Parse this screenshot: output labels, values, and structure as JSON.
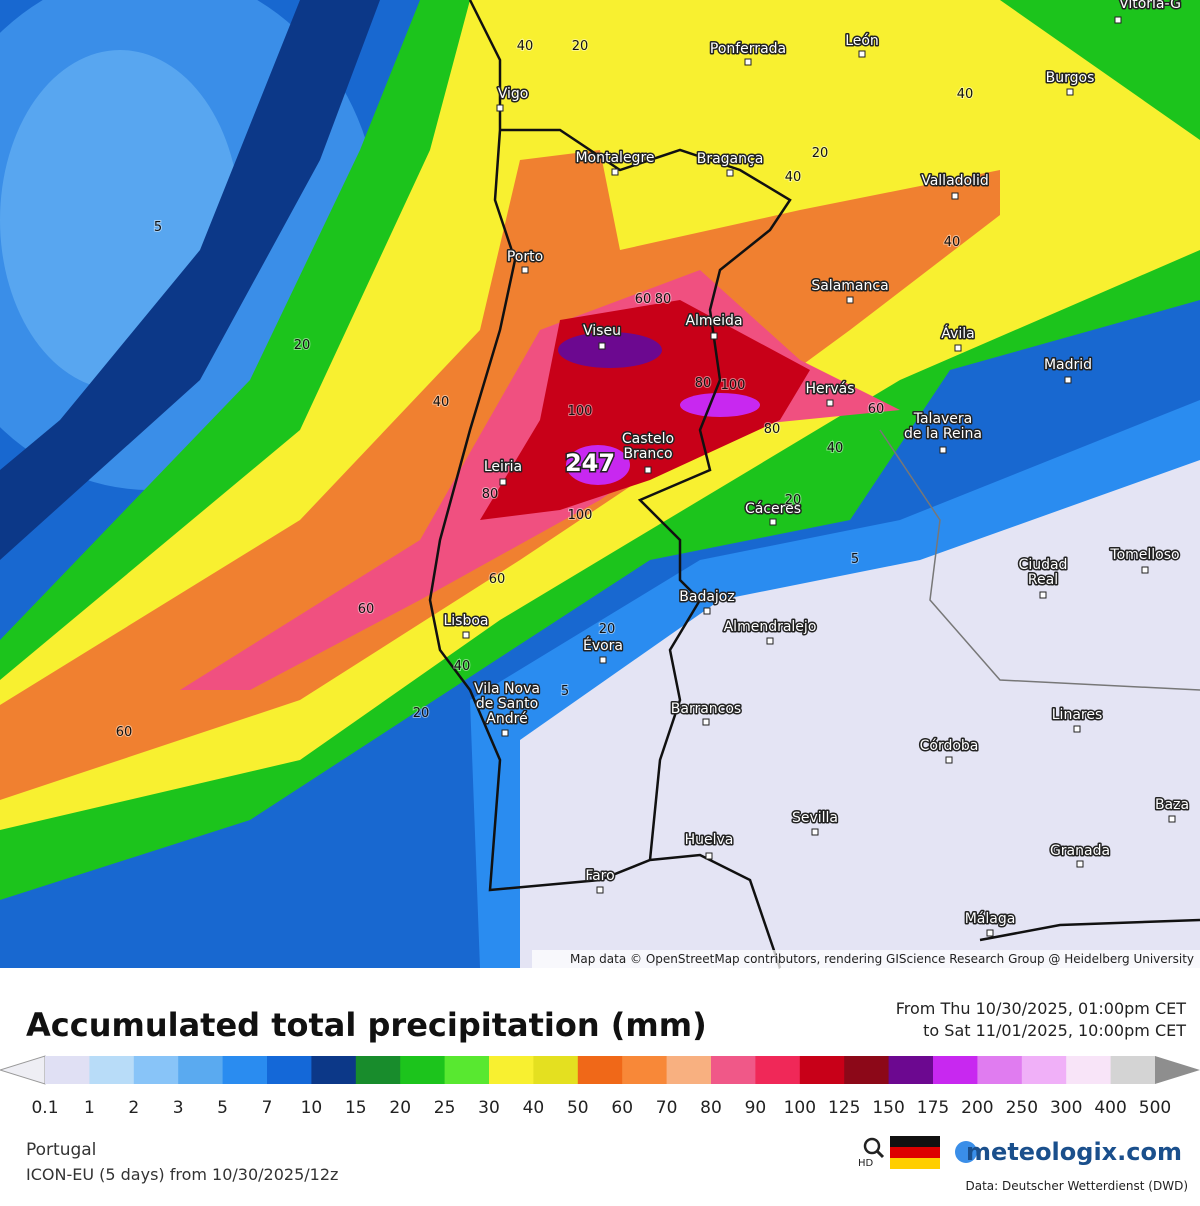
{
  "map": {
    "cities": [
      {
        "lines": [
          "Vitoria-G"
        ]
      },
      {
        "lines": [
          "Ponferrada"
        ]
      },
      {
        "lines": [
          "León"
        ]
      },
      {
        "lines": [
          "Burgos"
        ]
      },
      {
        "lines": [
          "Vigo"
        ]
      },
      {
        "lines": [
          "Montalegre"
        ]
      },
      {
        "lines": [
          "Bragança"
        ]
      },
      {
        "lines": [
          "Valladolid"
        ]
      },
      {
        "lines": [
          "Porto"
        ]
      },
      {
        "lines": [
          "Salamanca"
        ]
      },
      {
        "lines": [
          "Viseu"
        ]
      },
      {
        "lines": [
          "Almeida"
        ]
      },
      {
        "lines": [
          "Ávila"
        ]
      },
      {
        "lines": [
          "Madrid"
        ]
      },
      {
        "lines": [
          "Hervás"
        ]
      },
      {
        "lines": [
          "Talavera",
          "de la Reina"
        ]
      },
      {
        "lines": [
          "Castelo",
          "Branco"
        ]
      },
      {
        "lines": [
          "Leiria"
        ]
      },
      {
        "lines": [
          "Cáceres"
        ]
      },
      {
        "lines": [
          "Ciudad",
          "Real"
        ]
      },
      {
        "lines": [
          "Tomelloso"
        ]
      },
      {
        "lines": [
          "Badajoz"
        ]
      },
      {
        "lines": [
          "Lisboa"
        ]
      },
      {
        "lines": [
          "Almendralejo"
        ]
      },
      {
        "lines": [
          "Évora"
        ]
      },
      {
        "lines": [
          "Vila Nova",
          "de Santo",
          "André"
        ]
      },
      {
        "lines": [
          "Barrancos"
        ]
      },
      {
        "lines": [
          "Linares"
        ]
      },
      {
        "lines": [
          "Córdoba"
        ]
      },
      {
        "lines": [
          "Sevilla"
        ]
      },
      {
        "lines": [
          "Huelva"
        ]
      },
      {
        "lines": [
          "Baza"
        ]
      },
      {
        "lines": [
          "Granada"
        ]
      },
      {
        "lines": [
          "Faro"
        ]
      },
      {
        "lines": [
          "Málaga"
        ]
      }
    ],
    "contour_labels": [
      "40",
      "20",
      "40",
      "20",
      "40",
      "40",
      "5",
      "20",
      "40",
      "60",
      "80",
      "80",
      "100",
      "100",
      "80",
      "60",
      "40",
      "80",
      "100",
      "20",
      "5",
      "60",
      "60",
      "20",
      "40",
      "5",
      "20",
      "60"
    ],
    "max_label": "247",
    "attribution": "Map data © OpenStreetMap contributors, rendering GIScience Research Group @ Heidelberg University"
  },
  "title": "Accumulated total precipitation (mm)",
  "period": [
    "From Thu 10/30/2025, 01:00pm CET",
    "to Sat 11/01/2025, 10:00pm CET"
  ],
  "legend": {
    "low_color": "#eeeef4",
    "high_color": "#8e8e8e",
    "colors": [
      "#e0e0f4",
      "#b8dcf8",
      "#88c4f8",
      "#5aaaf0",
      "#2a8cf0",
      "#1468d8",
      "#0c3888",
      "#188c2c",
      "#1cc41c",
      "#58e830",
      "#f8f030",
      "#e4e020",
      "#f06818",
      "#f88838",
      "#f8b080",
      "#f05888",
      "#f02858",
      "#c80018",
      "#8c0818",
      "#6c0890",
      "#c828f0",
      "#e07cf0",
      "#f0b0f8",
      "#f8e4f8",
      "#d4d4d4"
    ],
    "ticks": [
      "0.1",
      "1",
      "2",
      "3",
      "5",
      "7",
      "10",
      "15",
      "20",
      "25",
      "30",
      "40",
      "50",
      "60",
      "70",
      "80",
      "90",
      "100",
      "125",
      "150",
      "175",
      "200",
      "250",
      "300",
      "400",
      "500"
    ]
  },
  "region": "Portugal",
  "model": "ICON-EU (5 days) from 10/30/2025/12z",
  "brand": "meteologix.com",
  "source": "Data: Deutscher Wetterdienst (DWD)"
}
